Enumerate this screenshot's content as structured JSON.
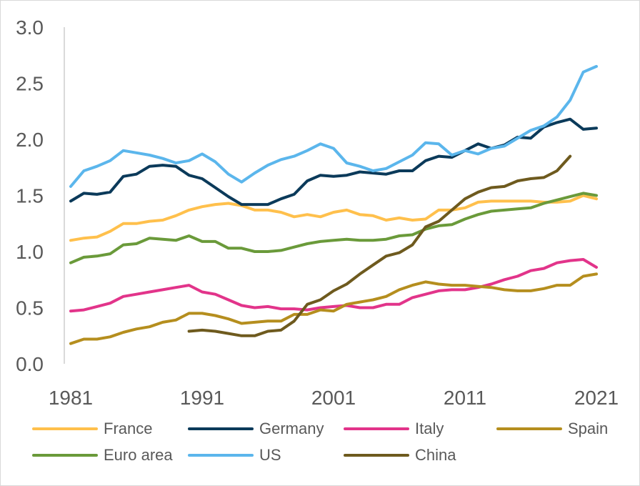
{
  "chart_data": {
    "type": "line",
    "title": "",
    "xlabel": "",
    "ylabel": "",
    "xlim": [
      1981,
      2021
    ],
    "ylim": [
      0.0,
      3.0
    ],
    "x_ticks": [
      "1981",
      "1991",
      "2001",
      "2011",
      "2021"
    ],
    "y_ticks": [
      "0.0",
      "0.5",
      "1.0",
      "1.5",
      "2.0",
      "2.5",
      "3.0"
    ],
    "grid": false,
    "legend_position": "bottom",
    "series": [
      {
        "name": "France",
        "color": "#FFC04C",
        "start": 1981,
        "values": [
          1.1,
          1.12,
          1.13,
          1.18,
          1.25,
          1.25,
          1.27,
          1.28,
          1.32,
          1.37,
          1.4,
          1.42,
          1.43,
          1.41,
          1.37,
          1.37,
          1.35,
          1.31,
          1.33,
          1.31,
          1.35,
          1.37,
          1.33,
          1.32,
          1.28,
          1.3,
          1.28,
          1.29,
          1.37,
          1.37,
          1.39,
          1.44,
          1.45,
          1.45,
          1.45,
          1.45,
          1.44,
          1.44,
          1.45,
          1.5,
          1.47
        ]
      },
      {
        "name": "Germany",
        "color": "#0B3A5A",
        "start": 1981,
        "values": [
          1.45,
          1.52,
          1.51,
          1.53,
          1.67,
          1.69,
          1.76,
          1.77,
          1.76,
          1.68,
          1.65,
          1.57,
          1.49,
          1.42,
          1.42,
          1.42,
          1.47,
          1.51,
          1.63,
          1.68,
          1.67,
          1.68,
          1.71,
          1.7,
          1.69,
          1.72,
          1.72,
          1.81,
          1.85,
          1.84,
          1.9,
          1.96,
          1.92,
          1.95,
          2.02,
          2.01,
          2.11,
          2.15,
          2.18,
          2.09,
          2.1
        ]
      },
      {
        "name": "Italy",
        "color": "#E2348A",
        "start": 1981,
        "values": [
          0.47,
          0.48,
          0.51,
          0.54,
          0.6,
          0.62,
          0.64,
          0.66,
          0.68,
          0.7,
          0.64,
          0.62,
          0.57,
          0.52,
          0.5,
          0.51,
          0.49,
          0.49,
          0.48,
          0.5,
          0.51,
          0.52,
          0.5,
          0.5,
          0.53,
          0.53,
          0.59,
          0.62,
          0.65,
          0.66,
          0.66,
          0.68,
          0.71,
          0.75,
          0.78,
          0.83,
          0.85,
          0.9,
          0.92,
          0.93,
          0.86
        ]
      },
      {
        "name": "Spain",
        "color": "#B58E1E",
        "start": 1981,
        "values": [
          0.18,
          0.22,
          0.22,
          0.24,
          0.28,
          0.31,
          0.33,
          0.37,
          0.39,
          0.45,
          0.45,
          0.43,
          0.4,
          0.36,
          0.37,
          0.38,
          0.38,
          0.44,
          0.44,
          0.48,
          0.47,
          0.53,
          0.55,
          0.57,
          0.6,
          0.66,
          0.7,
          0.73,
          0.71,
          0.7,
          0.7,
          0.69,
          0.68,
          0.66,
          0.65,
          0.65,
          0.67,
          0.7,
          0.7,
          0.78,
          0.8
        ]
      },
      {
        "name": "Euro area",
        "color": "#6A9A3A",
        "start": 1981,
        "values": [
          0.9,
          0.95,
          0.96,
          0.98,
          1.06,
          1.07,
          1.12,
          1.11,
          1.1,
          1.14,
          1.09,
          1.09,
          1.03,
          1.03,
          1.0,
          1.0,
          1.01,
          1.04,
          1.07,
          1.09,
          1.1,
          1.11,
          1.1,
          1.1,
          1.11,
          1.14,
          1.15,
          1.2,
          1.23,
          1.24,
          1.29,
          1.33,
          1.36,
          1.37,
          1.38,
          1.39,
          1.43,
          1.46,
          1.49,
          1.52,
          1.5
        ]
      },
      {
        "name": "US",
        "color": "#5BB6EC",
        "start": 1981,
        "values": [
          1.58,
          1.72,
          1.76,
          1.81,
          1.9,
          1.88,
          1.86,
          1.83,
          1.79,
          1.81,
          1.87,
          1.8,
          1.69,
          1.62,
          1.7,
          1.77,
          1.82,
          1.85,
          1.9,
          1.96,
          1.92,
          1.79,
          1.76,
          1.72,
          1.74,
          1.8,
          1.86,
          1.97,
          1.96,
          1.86,
          1.9,
          1.87,
          1.92,
          1.94,
          2.01,
          2.08,
          2.12,
          2.2,
          2.35,
          2.6,
          2.65
        ]
      },
      {
        "name": "China",
        "color": "#6E5A1E",
        "start": 1990,
        "values": [
          0.29,
          0.3,
          0.29,
          0.27,
          0.25,
          0.25,
          0.29,
          0.3,
          0.38,
          0.53,
          0.57,
          0.65,
          0.71,
          0.8,
          0.88,
          0.96,
          0.99,
          1.06,
          1.22,
          1.27,
          1.37,
          1.47,
          1.53,
          1.57,
          1.58,
          1.63,
          1.65,
          1.66,
          1.72,
          1.85
        ]
      }
    ]
  }
}
